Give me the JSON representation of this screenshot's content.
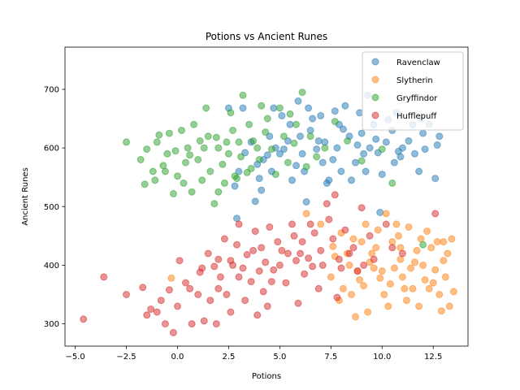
{
  "chart_data": {
    "type": "scatter",
    "title": "Potions vs Ancient Runes",
    "xlabel": "Potions",
    "ylabel": "Ancient Runes",
    "xlim": [
      -5.5,
      14.2
    ],
    "ylim": [
      262,
      772
    ],
    "xticks": [
      -5.0,
      -2.5,
      0.0,
      2.5,
      5.0,
      7.5,
      10.0,
      12.5
    ],
    "xtick_labels": [
      "−5.0",
      "−2.5",
      "0.0",
      "2.5",
      "5.0",
      "7.5",
      "10.0",
      "12.5"
    ],
    "yticks": [
      300,
      400,
      500,
      600,
      700
    ],
    "ytick_labels": [
      "300",
      "400",
      "500",
      "600",
      "700"
    ],
    "grid": false,
    "legend_position": "top-right",
    "marker_alpha": 0.5,
    "series": [
      {
        "name": "Ravenclaw",
        "color": "#1f77b4",
        "points": [
          [
            7.2,
            610
          ],
          [
            7.8,
            600
          ],
          [
            8.4,
            620
          ],
          [
            9.1,
            590
          ],
          [
            6.5,
            630
          ],
          [
            10.2,
            610
          ],
          [
            11.0,
            600
          ],
          [
            9.6,
            640
          ],
          [
            8.9,
            660
          ],
          [
            12.0,
            625
          ],
          [
            12.7,
            605
          ],
          [
            12.6,
            548
          ],
          [
            11.8,
            560
          ],
          [
            10.6,
            575
          ],
          [
            6.0,
            620
          ],
          [
            5.5,
            640
          ],
          [
            4.8,
            600
          ],
          [
            4.2,
            580
          ],
          [
            3.6,
            610
          ],
          [
            3.0,
            560
          ],
          [
            2.8,
            535
          ],
          [
            2.5,
            668
          ],
          [
            3.2,
            668
          ],
          [
            4.7,
            668
          ],
          [
            5.9,
            680
          ],
          [
            7.0,
            655
          ],
          [
            8.2,
            672
          ],
          [
            9.3,
            690
          ],
          [
            10.3,
            648
          ],
          [
            11.5,
            640
          ],
          [
            12.3,
            640
          ],
          [
            6.3,
            508
          ],
          [
            2.9,
            480
          ],
          [
            4.1,
            528
          ],
          [
            3.8,
            509
          ],
          [
            5.6,
            545
          ],
          [
            7.4,
            545
          ],
          [
            8.0,
            560
          ],
          [
            9.8,
            592
          ],
          [
            10.9,
            585
          ],
          [
            9.9,
            490
          ],
          [
            6.2,
            560
          ],
          [
            7.6,
            580
          ],
          [
            8.7,
            575
          ],
          [
            9.4,
            600
          ],
          [
            5.2,
            598
          ],
          [
            4.5,
            620
          ],
          [
            6.8,
            598
          ],
          [
            7.1,
            575
          ],
          [
            8.1,
            632
          ],
          [
            6.6,
            650
          ],
          [
            5.1,
            655
          ],
          [
            10.7,
            660
          ],
          [
            11.3,
            612
          ],
          [
            12.1,
            598
          ],
          [
            12.8,
            620
          ],
          [
            9.0,
            625
          ],
          [
            7.9,
            640
          ],
          [
            6.1,
            590
          ],
          [
            5.8,
            570
          ],
          [
            3.3,
            592
          ],
          [
            4.0,
            548
          ],
          [
            10.0,
            555
          ],
          [
            11.6,
            590
          ],
          [
            8.5,
            545
          ],
          [
            9.2,
            560
          ],
          [
            7.3,
            540
          ],
          [
            6.9,
            612
          ],
          [
            5.4,
            612
          ],
          [
            4.4,
            588
          ],
          [
            3.9,
            572
          ],
          [
            8.8,
            605
          ],
          [
            10.5,
            630
          ],
          [
            11.9,
            650
          ],
          [
            7.7,
            663
          ],
          [
            6.4,
            668
          ],
          [
            5.0,
            590
          ],
          [
            4.6,
            560
          ],
          [
            9.7,
            615
          ],
          [
            10.8,
            594
          ]
        ]
      },
      {
        "name": "Slytherin",
        "color": "#ff7f0e",
        "points": [
          [
            10.0,
            390
          ],
          [
            11.0,
            380
          ],
          [
            12.0,
            400
          ],
          [
            9.5,
            420
          ],
          [
            10.5,
            440
          ],
          [
            11.5,
            360
          ],
          [
            12.5,
            370
          ],
          [
            13.2,
            420
          ],
          [
            13.4,
            445
          ],
          [
            13.0,
            440
          ],
          [
            12.8,
            350
          ],
          [
            13.3,
            330
          ],
          [
            11.8,
            330
          ],
          [
            10.3,
            330
          ],
          [
            9.3,
            320
          ],
          [
            8.7,
            312
          ],
          [
            7.9,
            340
          ],
          [
            7.5,
            380
          ],
          [
            8.4,
            400
          ],
          [
            9.0,
            440
          ],
          [
            9.8,
            460
          ],
          [
            10.7,
            470
          ],
          [
            11.3,
            465
          ],
          [
            12.2,
            458
          ],
          [
            10.2,
            488
          ],
          [
            6.3,
            488
          ],
          [
            7.0,
            470
          ],
          [
            -0.3,
            378
          ],
          [
            8.1,
            360
          ],
          [
            8.9,
            375
          ],
          [
            9.6,
            395
          ],
          [
            10.9,
            410
          ],
          [
            11.7,
            425
          ],
          [
            12.6,
            392
          ],
          [
            13.1,
            380
          ],
          [
            13.5,
            355
          ],
          [
            12.9,
            322
          ],
          [
            11.2,
            340
          ],
          [
            10.1,
            350
          ],
          [
            9.1,
            365
          ],
          [
            8.3,
            420
          ],
          [
            7.7,
            415
          ],
          [
            8.6,
            445
          ],
          [
            9.4,
            405
          ],
          [
            10.6,
            395
          ],
          [
            11.6,
            405
          ],
          [
            12.4,
            430
          ],
          [
            13.0,
            408
          ],
          [
            12.1,
            375
          ],
          [
            11.1,
            360
          ],
          [
            10.4,
            368
          ],
          [
            9.9,
            378
          ],
          [
            8.8,
            390
          ],
          [
            7.6,
            432
          ],
          [
            8.0,
            455
          ],
          [
            9.2,
            470
          ],
          [
            10.8,
            450
          ],
          [
            11.9,
            445
          ],
          [
            12.7,
            440
          ],
          [
            9.7,
            430
          ],
          [
            10.9,
            430
          ],
          [
            11.4,
            395
          ],
          [
            12.3,
            360
          ],
          [
            8.5,
            350
          ]
        ]
      },
      {
        "name": "Gryffindor",
        "color": "#2ca02c",
        "points": [
          [
            2.0,
            600
          ],
          [
            1.5,
            620
          ],
          [
            2.5,
            590
          ],
          [
            3.0,
            610
          ],
          [
            1.0,
            580
          ],
          [
            0.5,
            600
          ],
          [
            -0.5,
            590
          ],
          [
            -1.0,
            610
          ],
          [
            -1.5,
            598
          ],
          [
            -2.5,
            610
          ],
          [
            -1.8,
            580
          ],
          [
            -1.2,
            560
          ],
          [
            -0.7,
            570
          ],
          [
            0.0,
            552
          ],
          [
            0.3,
            540
          ],
          [
            0.7,
            525
          ],
          [
            -0.2,
            522
          ],
          [
            -1.6,
            538
          ],
          [
            1.8,
            505
          ],
          [
            2.3,
            540
          ],
          [
            2.8,
            552
          ],
          [
            3.4,
            558
          ],
          [
            4.0,
            580
          ],
          [
            4.6,
            598
          ],
          [
            5.2,
            620
          ],
          [
            5.8,
            640
          ],
          [
            6.1,
            695
          ],
          [
            3.2,
            690
          ],
          [
            4.1,
            672
          ],
          [
            2.6,
            660
          ],
          [
            1.4,
            668
          ],
          [
            0.8,
            640
          ],
          [
            0.2,
            630
          ],
          [
            -0.4,
            625
          ],
          [
            -0.9,
            622
          ],
          [
            1.1,
            612
          ],
          [
            1.9,
            618
          ],
          [
            2.7,
            630
          ],
          [
            3.5,
            640
          ],
          [
            4.4,
            650
          ],
          [
            5.0,
            668
          ],
          [
            5.5,
            658
          ],
          [
            6.5,
            620
          ],
          [
            7.2,
            600
          ],
          [
            7.7,
            645
          ],
          [
            8.3,
            612
          ],
          [
            9.0,
            578
          ],
          [
            10.0,
            598
          ],
          [
            10.5,
            540
          ],
          [
            12.0,
            435
          ],
          [
            3.9,
            600
          ],
          [
            3.1,
            585
          ],
          [
            2.2,
            572
          ],
          [
            1.6,
            560
          ],
          [
            1.2,
            545
          ],
          [
            0.6,
            588
          ],
          [
            -0.1,
            595
          ],
          [
            4.8,
            555
          ],
          [
            5.4,
            575
          ],
          [
            6.3,
            568
          ],
          [
            2.0,
            525
          ],
          [
            2.9,
            548
          ],
          [
            3.7,
            612
          ],
          [
            4.3,
            627
          ],
          [
            5.7,
            608
          ],
          [
            6.8,
            585
          ],
          [
            1.3,
            600
          ],
          [
            0.4,
            575
          ],
          [
            -0.6,
            560
          ],
          [
            -1.1,
            545
          ],
          [
            2.4,
            610
          ],
          [
            3.6,
            565
          ]
        ]
      },
      {
        "name": "Hufflepuff",
        "color": "#d62728",
        "points": [
          [
            5.0,
            400
          ],
          [
            4.0,
            390
          ],
          [
            6.0,
            420
          ],
          [
            3.0,
            380
          ],
          [
            2.0,
            360
          ],
          [
            1.0,
            350
          ],
          [
            0.0,
            330
          ],
          [
            -1.0,
            320
          ],
          [
            -1.5,
            315
          ],
          [
            -2.5,
            350
          ],
          [
            -3.6,
            380
          ],
          [
            -4.6,
            308
          ],
          [
            -1.3,
            325
          ],
          [
            -0.6,
            300
          ],
          [
            -0.2,
            285
          ],
          [
            0.7,
            300
          ],
          [
            1.3,
            305
          ],
          [
            1.9,
            300
          ],
          [
            2.6,
            320
          ],
          [
            3.3,
            340
          ],
          [
            4.2,
            355
          ],
          [
            5.3,
            370
          ],
          [
            6.2,
            385
          ],
          [
            7.1,
            400
          ],
          [
            7.9,
            410
          ],
          [
            8.6,
            430
          ],
          [
            9.4,
            450
          ],
          [
            9.0,
            498
          ],
          [
            10.2,
            470
          ],
          [
            12.6,
            488
          ],
          [
            11.0,
            420
          ],
          [
            8.2,
            460
          ],
          [
            7.4,
            478
          ],
          [
            6.5,
            470
          ],
          [
            5.7,
            450
          ],
          [
            4.9,
            440
          ],
          [
            4.1,
            430
          ],
          [
            3.4,
            418
          ],
          [
            2.6,
            408
          ],
          [
            1.8,
            398
          ],
          [
            1.1,
            388
          ],
          [
            0.4,
            370
          ],
          [
            -0.4,
            358
          ],
          [
            -1.7,
            362
          ],
          [
            0.1,
            408
          ],
          [
            1.5,
            420
          ],
          [
            2.9,
            435
          ],
          [
            3.8,
            458
          ],
          [
            4.5,
            465
          ],
          [
            5.6,
            470
          ],
          [
            6.7,
            455
          ],
          [
            7.6,
            445
          ],
          [
            8.4,
            420
          ],
          [
            9.1,
            400
          ],
          [
            7.7,
            520
          ],
          [
            7.3,
            505
          ],
          [
            3.0,
            470
          ],
          [
            2.3,
            445
          ],
          [
            5.4,
            420
          ],
          [
            6.4,
            412
          ],
          [
            4.7,
            392
          ],
          [
            3.6,
            372
          ],
          [
            2.4,
            350
          ],
          [
            1.6,
            340
          ],
          [
            6.9,
            360
          ],
          [
            7.8,
            345
          ],
          [
            8.8,
            390
          ],
          [
            5.9,
            335
          ],
          [
            4.4,
            330
          ],
          [
            3.9,
            315
          ],
          [
            2.1,
            380
          ],
          [
            1.2,
            395
          ],
          [
            0.6,
            360
          ],
          [
            -0.8,
            340
          ],
          [
            6.1,
            440
          ],
          [
            5.1,
            425
          ],
          [
            4.3,
            405
          ],
          [
            3.2,
            395
          ],
          [
            2.7,
            400
          ],
          [
            7.0,
            425
          ],
          [
            8.0,
            395
          ],
          [
            9.6,
            410
          ],
          [
            10.5,
            430
          ],
          [
            3.7,
            425
          ],
          [
            6.6,
            398
          ],
          [
            5.8,
            408
          ],
          [
            4.6,
            372
          ],
          [
            2.0,
            410
          ]
        ]
      }
    ]
  }
}
